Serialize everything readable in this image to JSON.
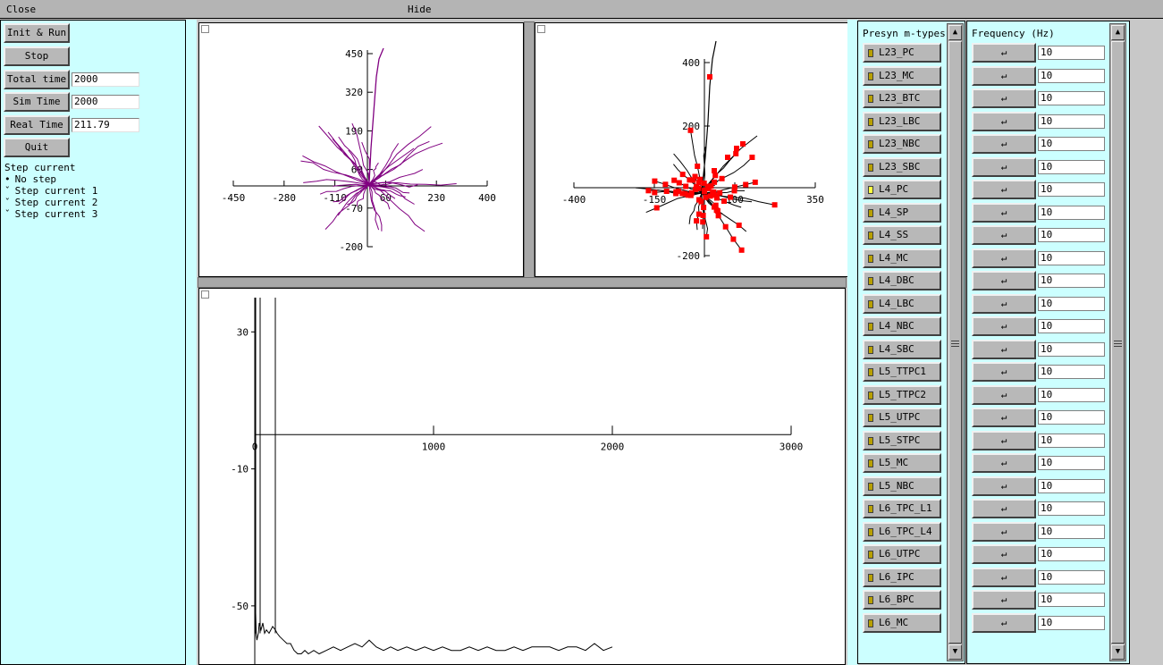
{
  "titlebar": {
    "close": "Close",
    "hide": "Hide"
  },
  "controls": {
    "init_run": "Init & Run",
    "stop": "Stop",
    "total_time_label": "Total time",
    "total_time_value": "2000",
    "sim_time_label": "Sim Time",
    "sim_time_value": "2000",
    "real_time_label": "Real Time",
    "real_time_value": "211.79",
    "quit": "Quit",
    "step_header": "Step current",
    "steps": [
      {
        "marker": "•",
        "label": "No step",
        "selected": true
      },
      {
        "marker": "ˇ",
        "label": "Step current 1",
        "selected": false
      },
      {
        "marker": "ˇ",
        "label": "Step current 2",
        "selected": false
      },
      {
        "marker": "ˇ",
        "label": "Step current 3",
        "selected": false
      }
    ]
  },
  "morph_purple": {
    "x_ticks": [
      "-450",
      "-280",
      "-110",
      "60",
      "230",
      "400"
    ],
    "y_ticks": [
      "450",
      "320",
      "190",
      "60",
      "-70",
      "-200"
    ],
    "color": "#800080"
  },
  "morph_red": {
    "x_ticks": [
      "-400",
      "-150",
      "100",
      "350"
    ],
    "y_ticks": [
      "400",
      "200",
      "-200"
    ],
    "synapse_color": "#ff0000"
  },
  "chart_data": {
    "type": "line",
    "x_ticks": [
      "0",
      "1000",
      "2000",
      "3000"
    ],
    "y_ticks": [
      "30",
      "-10",
      "-50"
    ],
    "xlim": [
      0,
      3000
    ],
    "ylim": [
      -67,
      40
    ],
    "spikes_x": [
      5,
      30,
      115
    ],
    "series": [
      {
        "x": [
          0,
          5,
          8,
          12,
          20,
          25,
          30,
          35,
          45,
          55,
          65,
          80,
          100,
          115,
          125,
          140,
          160,
          180,
          200,
          220,
          240,
          260,
          280,
          300,
          330,
          360,
          400,
          440,
          480,
          520,
          560,
          600,
          640,
          680,
          720,
          760,
          800,
          850,
          900,
          950,
          1000,
          1050,
          1100,
          1150,
          1200,
          1250,
          1300,
          1350,
          1400,
          1450,
          1500,
          1550,
          1600,
          1650,
          1700,
          1750,
          1800,
          1850,
          1900,
          1950,
          2000
        ],
        "y": [
          -60,
          -52,
          -58,
          -60,
          -58,
          -55,
          -56,
          -57,
          -55,
          -58,
          -57,
          -58,
          -56,
          -57,
          -58,
          -59,
          -60,
          -61,
          -61,
          -63,
          -64,
          -64,
          -63,
          -64,
          -63,
          -64,
          -63,
          -62,
          -63,
          -62,
          -61,
          -62,
          -60,
          -62,
          -63,
          -62,
          -63,
          -62,
          -63,
          -62,
          -63,
          -62,
          -63,
          -63,
          -62,
          -63,
          -62,
          -63,
          -63,
          -62,
          -63,
          -62,
          -62,
          -62,
          -63,
          -62,
          -62,
          -63,
          -61,
          -63,
          -62
        ]
      }
    ]
  },
  "presyn": {
    "header": "Presyn m-types",
    "items": [
      {
        "label": "L23_PC",
        "on": false
      },
      {
        "label": "L23_MC",
        "on": false
      },
      {
        "label": "L23_BTC",
        "on": false
      },
      {
        "label": "L23_LBC",
        "on": false
      },
      {
        "label": "L23_NBC",
        "on": false
      },
      {
        "label": "L23_SBC",
        "on": false
      },
      {
        "label": "L4_PC",
        "on": true
      },
      {
        "label": "L4_SP",
        "on": false
      },
      {
        "label": "L4_SS",
        "on": false
      },
      {
        "label": "L4_MC",
        "on": false
      },
      {
        "label": "L4_DBC",
        "on": false
      },
      {
        "label": "L4_LBC",
        "on": false
      },
      {
        "label": "L4_NBC",
        "on": false
      },
      {
        "label": "L4_SBC",
        "on": false
      },
      {
        "label": "L5_TTPC1",
        "on": false
      },
      {
        "label": "L5_TTPC2",
        "on": false
      },
      {
        "label": "L5_UTPC",
        "on": false
      },
      {
        "label": "L5_STPC",
        "on": false
      },
      {
        "label": "L5_MC",
        "on": false
      },
      {
        "label": "L5_NBC",
        "on": false
      },
      {
        "label": "L6_TPC_L1",
        "on": false
      },
      {
        "label": "L6_TPC_L4",
        "on": false
      },
      {
        "label": "L6_UTPC",
        "on": false
      },
      {
        "label": "L6_IPC",
        "on": false
      },
      {
        "label": "L6_BPC",
        "on": false
      },
      {
        "label": "L6_MC",
        "on": false
      }
    ]
  },
  "frequency": {
    "header": "Frequency (Hz)",
    "button_glyph": "↵",
    "values": [
      "10",
      "10",
      "10",
      "10",
      "10",
      "10",
      "10",
      "10",
      "10",
      "10",
      "10",
      "10",
      "10",
      "10",
      "10",
      "10",
      "10",
      "10",
      "10",
      "10",
      "10",
      "10",
      "10",
      "10",
      "10",
      "10"
    ]
  },
  "scroll_up": "▲",
  "scroll_down": "▼"
}
